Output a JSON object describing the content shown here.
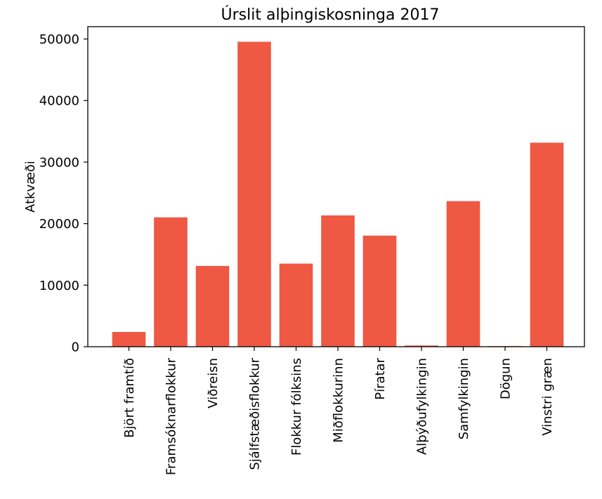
{
  "chart_data": {
    "type": "bar",
    "title": "Úrslit alþingiskosninga 2017",
    "xlabel": "",
    "ylabel": "Atkvæði",
    "categories": [
      "Björt framtíð",
      "Framsóknarflokkur",
      "Viðreisn",
      "Sjálfstæðisflokkur",
      "Flokkur fólksins",
      "Miðflokkurinn",
      "Píratar",
      "Alþýðufylkingin",
      "Samfylkingin",
      "Dögun",
      "Vinstri græn"
    ],
    "values": [
      2394,
      21016,
      13122,
      49543,
      13502,
      21335,
      18051,
      197,
      23652,
      101,
      33155
    ],
    "ylim": [
      0,
      52000
    ],
    "yticks": [
      0,
      10000,
      20000,
      30000,
      40000,
      50000
    ],
    "bar_color": "#ef5843",
    "grid": false
  }
}
